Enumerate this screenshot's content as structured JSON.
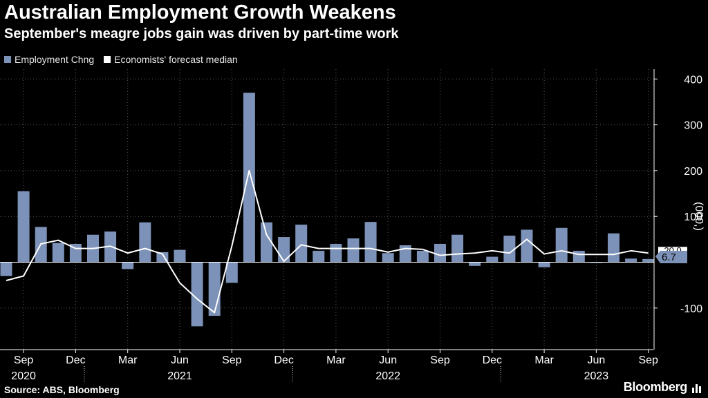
{
  "title": "Australian Employment Growth Weakens",
  "subtitle": "September's meagre jobs gain was driven by part-time work",
  "legend": {
    "employment_label": "Employment Chng",
    "forecast_label": "Economists' forecast median"
  },
  "source": "Source: ABS, Bloomberg",
  "brand": "Bloomberg",
  "colors": {
    "bar": "#7d92b8",
    "line": "#ffffff",
    "grid": "#5a5a5a",
    "background": "#000000"
  },
  "chart_data": {
    "type": "bar",
    "title": "Australian Employment Growth Weakens",
    "ylabel": "(000,)",
    "ylim": [
      -190,
      420
    ],
    "yticks": [
      400,
      300,
      200,
      100,
      -100
    ],
    "categories": [
      "Aug 2020",
      "Sep 2020",
      "Oct 2020",
      "Nov 2020",
      "Dec 2020",
      "Jan 2021",
      "Feb 2021",
      "Mar 2021",
      "Apr 2021",
      "May 2021",
      "Jun 2021",
      "Jul 2021",
      "Aug 2021",
      "Sep 2021",
      "Oct 2021",
      "Nov 2021",
      "Dec 2021",
      "Jan 2022",
      "Feb 2022",
      "Mar 2022",
      "Apr 2022",
      "May 2022",
      "Jun 2022",
      "Jul 2022",
      "Aug 2022",
      "Sep 2022",
      "Oct 2022",
      "Nov 2022",
      "Dec 2022",
      "Jan 2023",
      "Feb 2023",
      "Mar 2023",
      "Apr 2023",
      "May 2023",
      "Jun 2023",
      "Jul 2023",
      "Aug 2023",
      "Sep 2023"
    ],
    "x_tick_labels": [
      {
        "index": 1,
        "month": "Sep",
        "year": "2020"
      },
      {
        "index": 4,
        "month": "Dec"
      },
      {
        "index": 7,
        "month": "Mar"
      },
      {
        "index": 10,
        "month": "Jun",
        "year": "2021"
      },
      {
        "index": 13,
        "month": "Sep"
      },
      {
        "index": 16,
        "month": "Dec"
      },
      {
        "index": 19,
        "month": "Mar"
      },
      {
        "index": 22,
        "month": "Jun",
        "year": "2022"
      },
      {
        "index": 25,
        "month": "Sep"
      },
      {
        "index": 28,
        "month": "Dec"
      },
      {
        "index": 31,
        "month": "Mar"
      },
      {
        "index": 34,
        "month": "Jun",
        "year": "2023"
      },
      {
        "index": 37,
        "month": "Sep"
      }
    ],
    "year_dividers": [
      4.5,
      16.5,
      28.5
    ],
    "series": [
      {
        "name": "Employment Chng",
        "type": "bar",
        "values": [
          -30,
          155,
          77,
          42,
          40,
          60,
          67,
          -15,
          87,
          22,
          27,
          -140,
          -117,
          -45,
          370,
          87,
          55,
          82,
          25,
          40,
          52,
          88,
          20,
          37,
          25,
          40,
          60,
          -8,
          12,
          58,
          71,
          -11,
          75,
          25,
          -1,
          63,
          8,
          7
        ]
      },
      {
        "name": "Economists' forecast median",
        "type": "line",
        "values": [
          -40,
          -30,
          40,
          48,
          30,
          30,
          35,
          20,
          30,
          18,
          -45,
          -80,
          -110,
          35,
          200,
          60,
          2,
          38,
          30,
          30,
          30,
          30,
          22,
          30,
          28,
          15,
          18,
          20,
          25,
          20,
          50,
          18,
          25,
          17,
          17,
          17,
          25,
          20
        ]
      }
    ],
    "value_labels": {
      "forecast": "20.0",
      "actual": "6.7"
    }
  }
}
